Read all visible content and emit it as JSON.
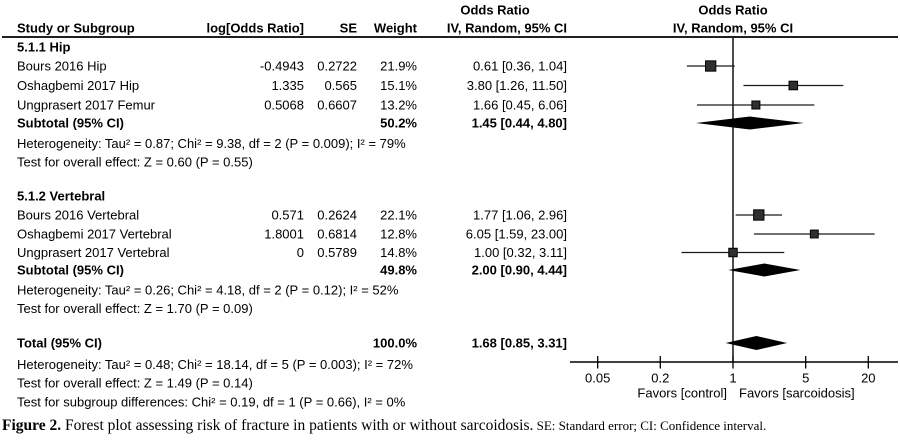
{
  "figure": {
    "caption_label": "Figure 2.",
    "caption_text": " Forest plot assessing risk of fracture in patients with or without sarcoidosis.",
    "caption_note": " SE: Standard error; CI: Confidence interval."
  },
  "chart_data": {
    "type": "forest",
    "effect_header": "Odds Ratio",
    "plot_header_line1": "Odds Ratio",
    "plot_header_line2": "IV, Random, 95% CI",
    "columns": {
      "study": "Study or Subgroup",
      "log_or": "log[Odds Ratio]",
      "se": "SE",
      "weight": "Weight",
      "effect_ci": "IV, Random, 95% CI"
    },
    "subgroups": [
      {
        "name": "5.1.1 Hip",
        "studies": [
          {
            "study": "Bours 2016 Hip",
            "log_or": "-0.4943",
            "se": "0.2722",
            "weight": "21.9%",
            "ci_text": "0.61 [0.36, 1.04]",
            "or": 0.61,
            "low": 0.36,
            "high": 1.04,
            "weight_pct": 21.9
          },
          {
            "study": "Oshagbemi 2017 Hip",
            "log_or": "1.335",
            "se": "0.565",
            "weight": "15.1%",
            "ci_text": "3.80 [1.26, 11.50]",
            "or": 3.8,
            "low": 1.26,
            "high": 11.5,
            "weight_pct": 15.1
          },
          {
            "study": "Ungprasert 2017 Femur",
            "log_or": "0.5068",
            "se": "0.6607",
            "weight": "13.2%",
            "ci_text": "1.66 [0.45, 6.06]",
            "or": 1.66,
            "low": 0.45,
            "high": 6.06,
            "weight_pct": 13.2
          }
        ],
        "subtotal": {
          "label": "Subtotal (95% CI)",
          "weight": "50.2%",
          "ci_text": "1.45 [0.44, 4.80]",
          "or": 1.45,
          "low": 0.44,
          "high": 4.8
        },
        "heterogeneity": "Heterogeneity: Tau² = 0.87; Chi² = 9.38, df = 2 (P = 0.009); I² = 79%",
        "overall_effect": "Test for overall effect: Z = 0.60 (P = 0.55)"
      },
      {
        "name": "5.1.2 Vertebral",
        "studies": [
          {
            "study": "Bours 2016 Vertebral",
            "log_or": "0.571",
            "se": "0.2624",
            "weight": "22.1%",
            "ci_text": "1.77 [1.06, 2.96]",
            "or": 1.77,
            "low": 1.06,
            "high": 2.96,
            "weight_pct": 22.1
          },
          {
            "study": "Oshagbemi 2017 Vertebral",
            "log_or": "1.8001",
            "se": "0.6814",
            "weight": "12.8%",
            "ci_text": "6.05 [1.59, 23.00]",
            "or": 6.05,
            "low": 1.59,
            "high": 23.0,
            "weight_pct": 12.8
          },
          {
            "study": "Ungprasert 2017 Vertebral",
            "log_or": "0",
            "se": "0.5789",
            "weight": "14.8%",
            "ci_text": "1.00 [0.32, 3.11]",
            "or": 1.0,
            "low": 0.32,
            "high": 3.11,
            "weight_pct": 14.8
          }
        ],
        "subtotal": {
          "label": "Subtotal (95% CI)",
          "weight": "49.8%",
          "ci_text": "2.00 [0.90, 4.44]",
          "or": 2.0,
          "low": 0.9,
          "high": 4.44
        },
        "heterogeneity": "Heterogeneity: Tau² = 0.26; Chi² = 4.18, df = 2 (P = 0.12); I² = 52%",
        "overall_effect": "Test for overall effect: Z = 1.70 (P = 0.09)"
      }
    ],
    "total": {
      "label": "Total (95% CI)",
      "weight": "100.0%",
      "ci_text": "1.68 [0.85, 3.31]",
      "or": 1.68,
      "low": 0.85,
      "high": 3.31
    },
    "total_heterogeneity": "Heterogeneity: Tau² = 0.48; Chi² = 18.14, df = 5 (P = 0.003); I² = 72%",
    "total_overall_effect": "Test for overall effect: Z = 1.49 (P = 0.14)",
    "subgroup_differences": "Test for subgroup differences: Chi² = 0.19, df = 1 (P = 0.66), I² = 0%",
    "axis": {
      "scale": "log",
      "ticks": [
        "0.05",
        "0.2",
        "1",
        "5",
        "20"
      ],
      "tick_values": [
        0.05,
        0.2,
        1,
        5,
        20
      ],
      "favors_left": "Favors [control]",
      "favors_right": "Favors [sarcoidosis]"
    },
    "colors": {
      "text": "#000000",
      "line": "#1a1a1a",
      "marker_fill": "#2f2f2f",
      "diamond_fill": "#000000"
    }
  }
}
